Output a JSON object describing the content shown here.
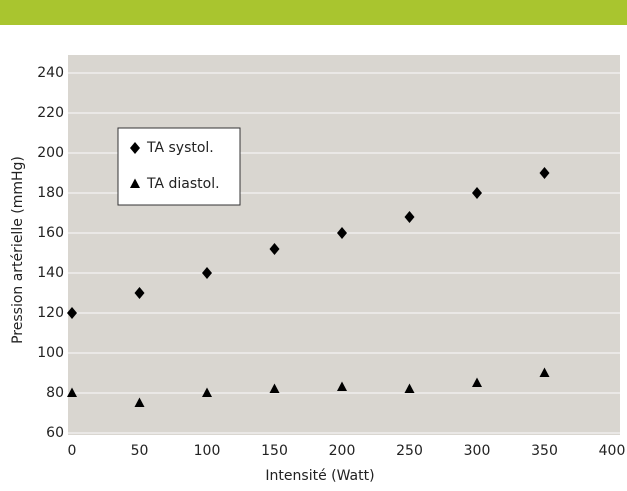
{
  "chart_data": {
    "type": "scatter",
    "x_label": "Intensité (Watt)",
    "y_label": "Pression artérielle (mmHg)",
    "x": [
      0,
      50,
      100,
      150,
      200,
      250,
      300,
      350
    ],
    "series": [
      {
        "name": "TA systol.",
        "color": "#000000",
        "marker": "diamond",
        "values": [
          120,
          130,
          140,
          152,
          160,
          168,
          180,
          190
        ]
      },
      {
        "name": "TA diastol.",
        "color": "#000000",
        "marker": "triangle",
        "values": [
          80,
          75,
          80,
          82,
          83,
          82,
          85,
          90
        ]
      }
    ],
    "xlim": [
      0,
      400
    ],
    "xticks": [
      0,
      50,
      100,
      150,
      200,
      250,
      300,
      350,
      400
    ],
    "ylim": [
      60,
      240
    ],
    "yticks": [
      60,
      80,
      100,
      120,
      140,
      160,
      180,
      200,
      220,
      240
    ],
    "grid": true,
    "header_color": "#a9c52f",
    "legend": "upper left"
  }
}
